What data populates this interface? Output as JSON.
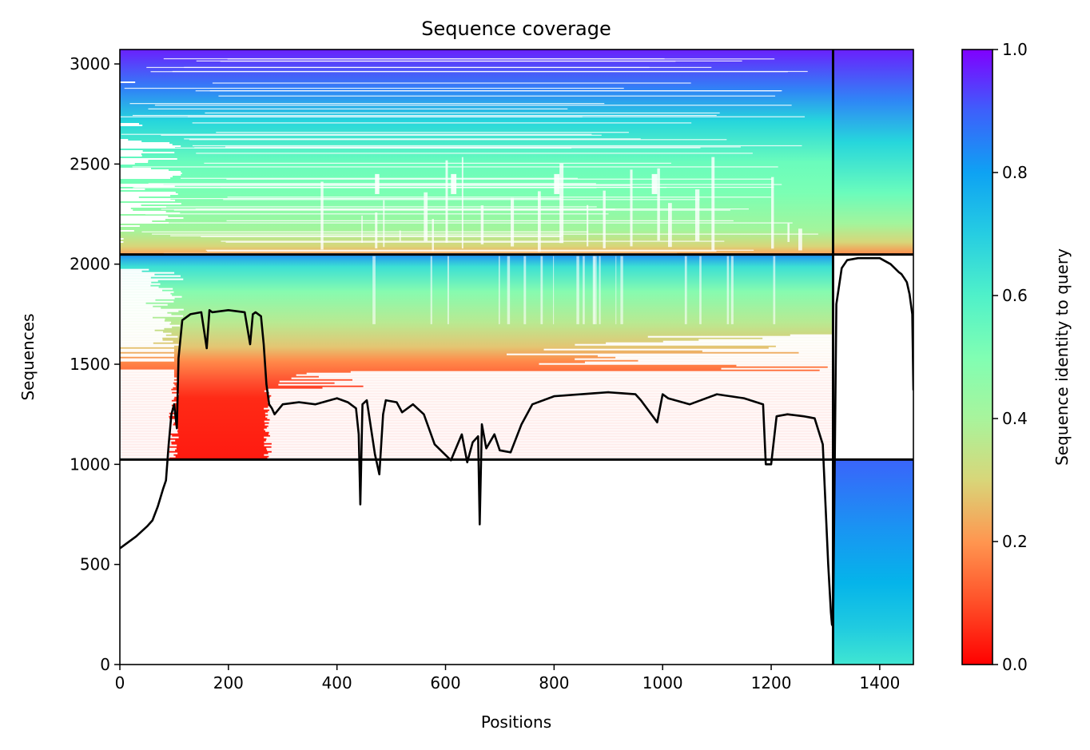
{
  "chart_data": {
    "type": "heatmap",
    "title": "Sequence coverage",
    "xlabel": "Positions",
    "ylabel": "Sequences",
    "xlim": [
      0,
      1462
    ],
    "ylim": [
      0,
      3072
    ],
    "xticks": [
      0,
      200,
      400,
      600,
      800,
      1000,
      1200,
      1400
    ],
    "yticks": [
      0,
      500,
      1000,
      1500,
      2000,
      2500,
      3000
    ],
    "colorbar": {
      "label": "Sequence identity to query",
      "colormap": "rainbow_r",
      "range": [
        0.0,
        1.0
      ],
      "ticks": [
        "0.0",
        "0.2",
        "0.4",
        "0.6",
        "0.8",
        "1.0"
      ]
    },
    "section_boundaries": {
      "horizontal_y": [
        1024,
        2048
      ],
      "vertical_x": [
        1314
      ]
    },
    "blocks": [
      {
        "x": [
          0,
          1314
        ],
        "y": [
          2048,
          3072
        ],
        "identity_top": 0.97,
        "identity_bottom": 0.26,
        "coverage_start": [
          0,
          120
        ]
      },
      {
        "x": [
          1314,
          1462
        ],
        "y": [
          2048,
          3072
        ],
        "identity_top": 0.96,
        "identity_bottom": 0.28
      },
      {
        "x": [
          0,
          1314
        ],
        "y": [
          1024,
          2048
        ],
        "identity_top": 0.85,
        "identity_bottom": 0.0,
        "coverage_start": [
          100,
          120
        ]
      },
      {
        "x": [
          1314,
          1462
        ],
        "y": [
          0,
          1024
        ],
        "identity_top": 0.84,
        "identity_bottom": 0.66
      }
    ],
    "coverage_line": {
      "x": [
        0,
        5,
        10,
        30,
        50,
        60,
        70,
        80,
        85,
        90,
        95,
        100,
        105,
        108,
        115,
        130,
        150,
        160,
        165,
        170,
        200,
        230,
        240,
        245,
        250,
        260,
        265,
        270,
        275,
        280,
        285,
        300,
        330,
        360,
        400,
        420,
        435,
        440,
        443,
        447,
        455,
        470,
        478,
        485,
        490,
        510,
        520,
        540,
        560,
        580,
        610,
        630,
        640,
        650,
        660,
        663,
        667,
        675,
        690,
        700,
        720,
        740,
        760,
        800,
        850,
        900,
        950,
        960,
        990,
        1000,
        1010,
        1050,
        1100,
        1150,
        1185,
        1190,
        1200,
        1210,
        1230,
        1260,
        1280,
        1295,
        1305,
        1310,
        1312,
        1314,
        1320,
        1330,
        1340,
        1360,
        1400,
        1420,
        1435,
        1440,
        1445,
        1450,
        1455,
        1460,
        1462
      ],
      "y": [
        580,
        590,
        600,
        640,
        690,
        720,
        790,
        880,
        920,
        1100,
        1250,
        1300,
        1180,
        1530,
        1720,
        1750,
        1760,
        1580,
        1770,
        1760,
        1770,
        1760,
        1600,
        1750,
        1760,
        1740,
        1600,
        1400,
        1300,
        1280,
        1250,
        1300,
        1310,
        1300,
        1330,
        1310,
        1280,
        1150,
        800,
        1300,
        1320,
        1050,
        950,
        1250,
        1320,
        1310,
        1260,
        1300,
        1250,
        1100,
        1020,
        1150,
        1010,
        1110,
        1140,
        700,
        1200,
        1080,
        1150,
        1070,
        1060,
        1200,
        1300,
        1340,
        1350,
        1360,
        1350,
        1320,
        1210,
        1350,
        1330,
        1300,
        1350,
        1330,
        1300,
        1000,
        1000,
        1240,
        1250,
        1240,
        1230,
        1100,
        500,
        260,
        200,
        190,
        1800,
        1980,
        2020,
        2030,
        2030,
        2000,
        1960,
        1950,
        1930,
        1910,
        1850,
        1750,
        1370
      ]
    }
  }
}
